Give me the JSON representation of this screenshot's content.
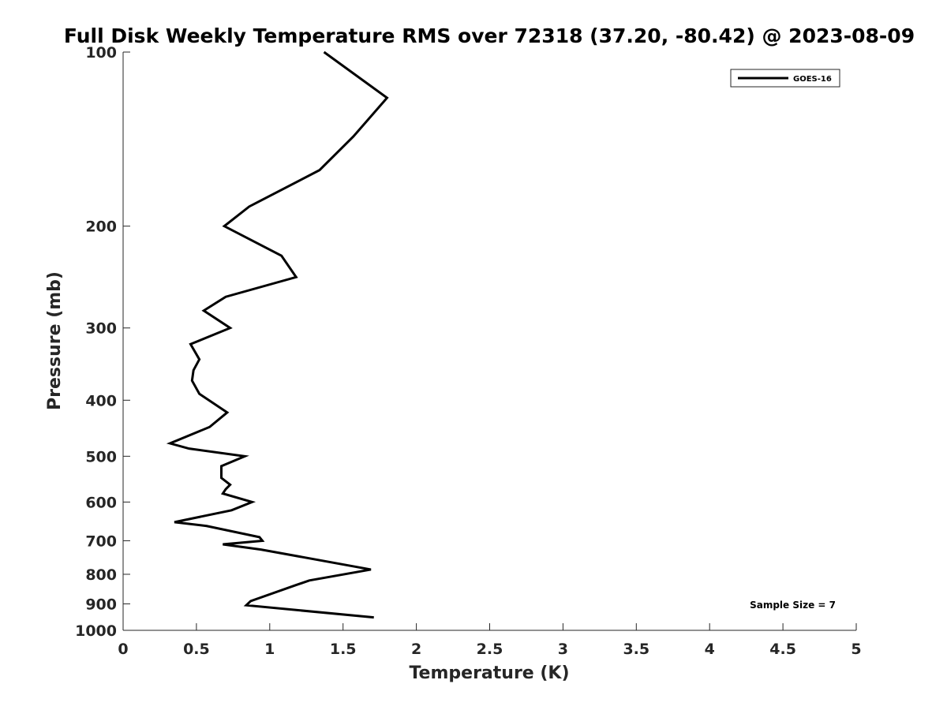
{
  "chart_data": {
    "type": "line",
    "title": "Full Disk Weekly Temperature RMS over 72318 (37.20, -80.42) @ 2023-08-09",
    "xlabel": "Temperature (K)",
    "ylabel": "Pressure (mb)",
    "xlim": [
      0,
      5
    ],
    "ylim": [
      100,
      1000
    ],
    "y_scale": "log",
    "y_reversed": true,
    "grid": false,
    "legend_position": "top-right",
    "x_ticks": [
      0,
      0.5,
      1,
      1.5,
      2,
      2.5,
      3,
      3.5,
      4,
      4.5,
      5
    ],
    "x_tick_labels": [
      "0",
      "0.5",
      "1",
      "1.5",
      "2",
      "2.5",
      "3",
      "3.5",
      "4",
      "4.5",
      "5"
    ],
    "y_ticks": [
      100,
      200,
      300,
      400,
      500,
      600,
      700,
      800,
      900,
      1000
    ],
    "y_tick_labels": [
      "100",
      "200",
      "300",
      "400",
      "500",
      "600",
      "700",
      "800",
      "900",
      "1000"
    ],
    "series": [
      {
        "name": "GOES-16",
        "color": "#000000",
        "points": [
          {
            "x": 1.37,
            "y": 100
          },
          {
            "x": 1.8,
            "y": 120
          },
          {
            "x": 1.57,
            "y": 140
          },
          {
            "x": 1.34,
            "y": 160
          },
          {
            "x": 0.86,
            "y": 185
          },
          {
            "x": 0.69,
            "y": 200
          },
          {
            "x": 1.08,
            "y": 225
          },
          {
            "x": 1.18,
            "y": 245
          },
          {
            "x": 0.7,
            "y": 265
          },
          {
            "x": 0.55,
            "y": 280
          },
          {
            "x": 0.73,
            "y": 300
          },
          {
            "x": 0.46,
            "y": 320
          },
          {
            "x": 0.52,
            "y": 340
          },
          {
            "x": 0.48,
            "y": 355
          },
          {
            "x": 0.47,
            "y": 370
          },
          {
            "x": 0.52,
            "y": 390
          },
          {
            "x": 0.71,
            "y": 420
          },
          {
            "x": 0.59,
            "y": 445
          },
          {
            "x": 0.32,
            "y": 475
          },
          {
            "x": 0.45,
            "y": 485
          },
          {
            "x": 0.83,
            "y": 500
          },
          {
            "x": 0.67,
            "y": 520
          },
          {
            "x": 0.67,
            "y": 545
          },
          {
            "x": 0.73,
            "y": 560
          },
          {
            "x": 0.7,
            "y": 570
          },
          {
            "x": 0.68,
            "y": 580
          },
          {
            "x": 0.88,
            "y": 600
          },
          {
            "x": 0.74,
            "y": 620
          },
          {
            "x": 0.35,
            "y": 650
          },
          {
            "x": 0.57,
            "y": 660
          },
          {
            "x": 0.93,
            "y": 690
          },
          {
            "x": 0.95,
            "y": 700
          },
          {
            "x": 0.68,
            "y": 710
          },
          {
            "x": 0.94,
            "y": 725
          },
          {
            "x": 1.69,
            "y": 785
          },
          {
            "x": 1.27,
            "y": 820
          },
          {
            "x": 1.18,
            "y": 835
          },
          {
            "x": 0.87,
            "y": 890
          },
          {
            "x": 0.84,
            "y": 905
          },
          {
            "x": 1.71,
            "y": 950
          }
        ]
      }
    ],
    "annotation": "Sample Size = 7"
  }
}
